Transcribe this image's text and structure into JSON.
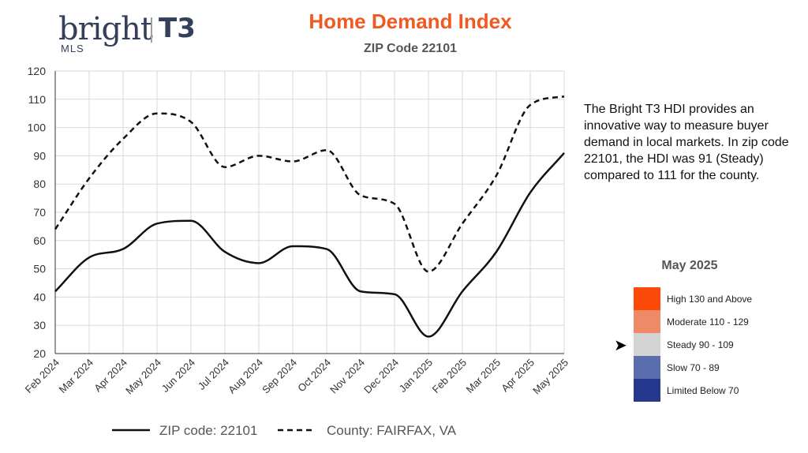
{
  "logo": {
    "brand": "bright",
    "sub": "MLS",
    "partner": "T3"
  },
  "chart_data": {
    "type": "line",
    "title": "Home Demand Index",
    "subtitle": "ZIP Code 22101",
    "xlabel": "",
    "ylabel": "",
    "categories": [
      "Feb 2024",
      "Mar 2024",
      "Apr 2024",
      "May 2024",
      "Jun 2024",
      "Jul 2024",
      "Aug 2024",
      "Sep 2024",
      "Oct 2024",
      "Nov 2024",
      "Dec 2024",
      "Jan 2025",
      "Feb 2025",
      "Mar 2025",
      "Apr 2025",
      "May 2025"
    ],
    "y_ticks": [
      20,
      30,
      40,
      50,
      60,
      70,
      80,
      90,
      100,
      110,
      120
    ],
    "ylim": [
      20,
      120
    ],
    "grid": true,
    "legend_position": "bottom",
    "series": [
      {
        "name": "ZIP code: 22101",
        "style": "solid",
        "color": "#111111",
        "values": [
          42,
          54,
          57,
          66,
          67,
          56,
          52,
          58,
          57,
          42,
          41,
          26,
          42,
          56,
          77,
          91
        ]
      },
      {
        "name": "County: FAIRFAX, VA",
        "style": "dashed",
        "color": "#111111",
        "values": [
          64,
          82,
          96,
          105,
          102,
          86,
          90,
          88,
          92,
          76,
          73,
          49,
          66,
          83,
          108,
          111
        ]
      }
    ]
  },
  "description": "The Bright T3 HDI provides an innovative way to measure buyer demand in local markets. In zip code 22101, the HDI was 91 (Steady) compared to 111 for the county.",
  "level_legend": {
    "title": "May 2025",
    "current_index": 2,
    "levels": [
      {
        "label": "High 130 and Above",
        "color": "#fc4a0b"
      },
      {
        "label": "Moderate 110 - 129",
        "color": "#ee8a67"
      },
      {
        "label": "Steady 90 - 109",
        "color": "#d4d4d4"
      },
      {
        "label": "Slow 70 - 89",
        "color": "#5a6eae"
      },
      {
        "label": "Limited Below 70",
        "color": "#26388e"
      }
    ]
  }
}
